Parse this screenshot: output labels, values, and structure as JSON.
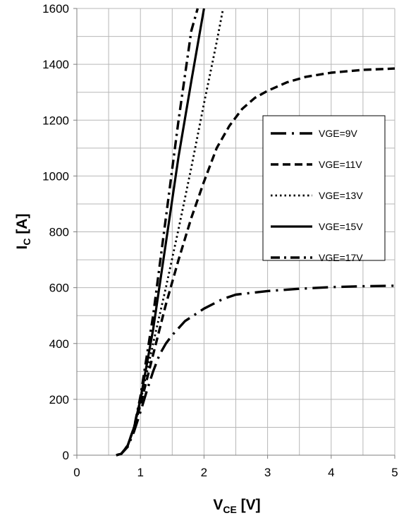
{
  "chart_data": {
    "type": "line",
    "xlabel": {
      "main": "V",
      "sub": "CE",
      "unit": " [V]"
    },
    "ylabel": {
      "main": "I",
      "sub": "C",
      "unit": " [A]"
    },
    "xlim": [
      0,
      5
    ],
    "ylim": [
      0,
      1600
    ],
    "xticks": [
      "0",
      "1",
      "2",
      "3",
      "4",
      "5"
    ],
    "yticks": [
      "0",
      "200",
      "400",
      "600",
      "800",
      "1000",
      "1200",
      "1400",
      "1600"
    ],
    "grid": true,
    "legend_position": "right",
    "series": [
      {
        "name": "VGE=9V",
        "dash": "long-dash-dot",
        "x": [
          0.62,
          0.7,
          0.8,
          0.9,
          1.0,
          1.1,
          1.2,
          1.3,
          1.4,
          1.5,
          1.7,
          2.0,
          2.3,
          2.5,
          3.0,
          3.5,
          4.0,
          4.5,
          5.0
        ],
        "y": [
          0,
          5,
          30,
          85,
          155,
          230,
          300,
          360,
          400,
          430,
          480,
          525,
          560,
          575,
          588,
          596,
          602,
          605,
          607
        ]
      },
      {
        "name": "VGE=11V",
        "dash": "dash",
        "x": [
          0.62,
          0.7,
          0.8,
          0.9,
          1.0,
          1.2,
          1.4,
          1.6,
          1.8,
          2.0,
          2.2,
          2.4,
          2.6,
          2.8,
          3.0,
          3.3,
          3.6,
          4.0,
          4.5,
          5.0
        ],
        "y": [
          0,
          5,
          35,
          100,
          180,
          360,
          540,
          700,
          850,
          980,
          1100,
          1180,
          1240,
          1280,
          1305,
          1335,
          1355,
          1370,
          1380,
          1385
        ]
      },
      {
        "name": "VGE=13V",
        "dash": "dot",
        "x": [
          0.62,
          0.7,
          0.8,
          0.9,
          1.0,
          1.2,
          1.4,
          1.6,
          1.8,
          2.0,
          2.2,
          2.3
        ],
        "y": [
          0,
          5,
          35,
          100,
          190,
          400,
          600,
          810,
          1030,
          1260,
          1480,
          1600
        ]
      },
      {
        "name": "VGE=15V",
        "dash": "solid",
        "x": [
          0.62,
          0.7,
          0.8,
          0.9,
          1.0,
          1.2,
          1.4,
          1.6,
          1.8,
          2.0
        ],
        "y": [
          0,
          5,
          35,
          100,
          200,
          450,
          760,
          1070,
          1340,
          1600
        ]
      },
      {
        "name": "VGE=17V",
        "dash": "dash-dot",
        "x": [
          0.62,
          0.7,
          0.8,
          0.9,
          1.0,
          1.2,
          1.4,
          1.6,
          1.8,
          1.9
        ],
        "y": [
          0,
          5,
          35,
          100,
          210,
          500,
          850,
          1200,
          1520,
          1600
        ]
      }
    ]
  }
}
